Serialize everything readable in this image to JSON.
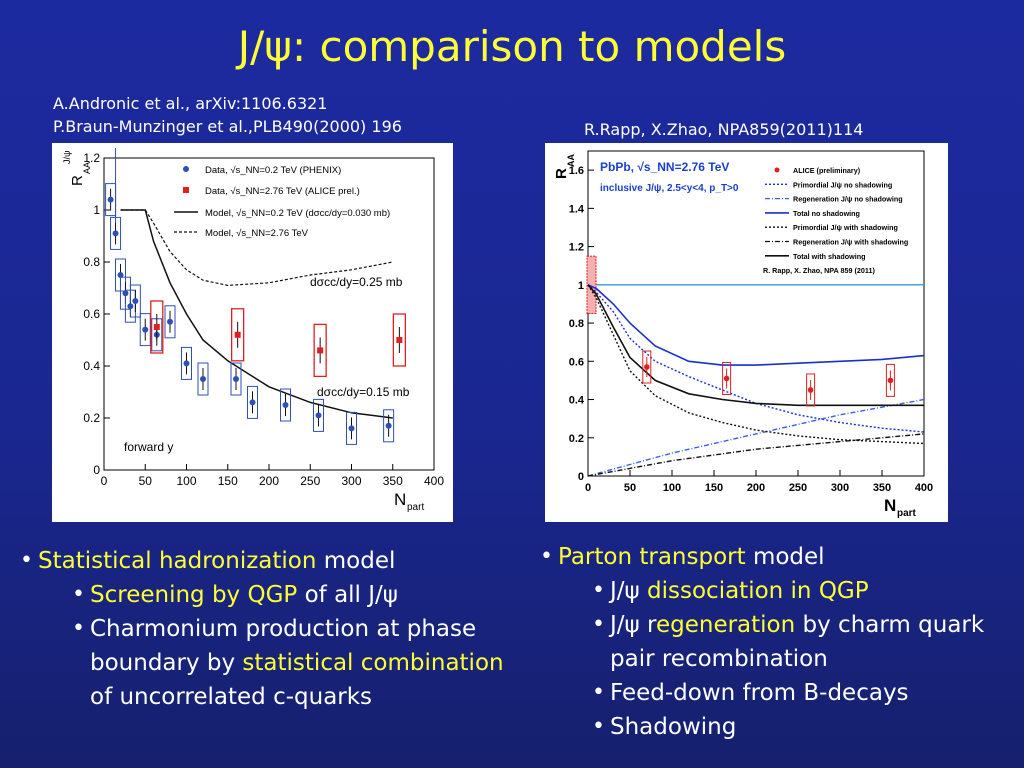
{
  "slide": {
    "title": "J/ψ: comparison to models"
  },
  "references": {
    "left_line1": "A.Andronic et al., arXiv:1106.6321",
    "left_line2": "P.Braun-Munzinger et al.,PLB490(2000) 196",
    "right": "R.Rapp, X.Zhao, NPA859(2011)114"
  },
  "left_bullets": {
    "b1_hl": "Statistical hadronization",
    "b1_rest": " model",
    "b2_hl": "Screening by QGP",
    "b2_rest": " of all J/ψ",
    "b3_pre": "Charmonium production at phase boundary by ",
    "b3_hl": "statistical combination",
    "b3_rest": " of uncorrelated c-quarks"
  },
  "right_bullets": {
    "b1_hl": "Parton transport",
    "b1_rest": " model",
    "b2_pre": "J/ψ ",
    "b2_hl": "dissociation in QGP",
    "b3_pre": "J/ψ r",
    "b3_hl": "egeneration",
    "b3_rest": " by charm quark pair recombination",
    "b4": "Feed-down from B-decays",
    "b5": "Shadowing"
  },
  "colors": {
    "title": "#ffff33",
    "highlight": "#ffff33",
    "background": "#1c2aa0",
    "phenix": "#2f4fb5",
    "alice": "#e02020"
  },
  "chart_data": [
    {
      "type": "scatter",
      "title": "",
      "xlabel": "N",
      "xlabel_sub": "part",
      "ylabel": "R",
      "ylabel_sub": "AA",
      "ylabel_sup": "J/ψ",
      "xlim": [
        0,
        400
      ],
      "ylim": [
        0,
        1.2
      ],
      "xticks": [
        "0",
        "50",
        "100",
        "150",
        "200",
        "250",
        "300",
        "350",
        "400"
      ],
      "yticks": [
        "0",
        "0.2",
        "0.4",
        "0.6",
        "0.8",
        "1",
        "1.2"
      ],
      "legend": [
        {
          "text": "Data, √s_NN=0.2 TeV (PHENIX)",
          "style": "blue-dot"
        },
        {
          "text": "Data, √s_NN=2.76 TeV (ALICE prel.)",
          "style": "red-square"
        },
        {
          "text": "Model, √s_NN=0.2 TeV (dσcc/dy=0.030 mb)",
          "style": "solid"
        },
        {
          "text": "Model, √s_NN=2.76 TeV",
          "style": "dashed"
        }
      ],
      "annotations": [
        "dσcc/dy=0.25 mb",
        "dσcc/dy=0.15 mb",
        "forward y"
      ],
      "series": [
        {
          "name": "Data, √s_NN=0.2 TeV (PHENIX)",
          "x": [
            8,
            14,
            20,
            26,
            32,
            38,
            50,
            64,
            80,
            100,
            120,
            160,
            180,
            220,
            260,
            300,
            345
          ],
          "y": [
            1.04,
            0.91,
            0.75,
            0.68,
            0.63,
            0.65,
            0.54,
            0.52,
            0.57,
            0.41,
            0.35,
            0.35,
            0.26,
            0.25,
            0.21,
            0.16,
            0.17
          ]
        },
        {
          "name": "Data, √s_NN=2.76 TeV (ALICE prel.)",
          "x": [
            64,
            162,
            262,
            358
          ],
          "y": [
            0.55,
            0.52,
            0.46,
            0.5
          ]
        },
        {
          "name": "Model, √s_NN=0.2 TeV (dσcc/dy=0.030 mb)",
          "x": [
            20,
            50,
            60,
            80,
            100,
            120,
            150,
            200,
            250,
            300,
            350
          ],
          "y": [
            1.0,
            1.0,
            0.88,
            0.72,
            0.6,
            0.5,
            0.42,
            0.32,
            0.26,
            0.22,
            0.2
          ]
        },
        {
          "name": "Model, √s_NN=2.76 TeV",
          "x": [
            20,
            50,
            60,
            80,
            100,
            120,
            150,
            200,
            250,
            300,
            350
          ],
          "y": [
            1.0,
            1.0,
            0.95,
            0.84,
            0.77,
            0.73,
            0.71,
            0.72,
            0.75,
            0.77,
            0.8
          ]
        }
      ]
    },
    {
      "type": "line",
      "title": "",
      "xlabel": "N",
      "xlabel_sub": "part",
      "ylabel": "R",
      "ylabel_sub": "AA",
      "xlim": [
        0,
        400
      ],
      "ylim": [
        0,
        1.7
      ],
      "xticks": [
        "0",
        "50",
        "100",
        "150",
        "200",
        "250",
        "300",
        "350",
        "400"
      ],
      "yticks": [
        "0",
        "0.2",
        "0.4",
        "0.6",
        "0.8",
        "1",
        "1.2",
        "1.4",
        "1.6"
      ],
      "info": [
        "PbPb, √s_NN=2.76 TeV",
        "inclusive J/ψ, 2.5<y<4, p_T>0"
      ],
      "legend": [
        {
          "text": "ALICE (preliminary)",
          "style": "red-dot"
        },
        {
          "text": "Primordial J/ψ no shadowing",
          "style": "blue-dotted"
        },
        {
          "text": "Regeneration J/ψ no shadowing",
          "style": "blue-dashdot"
        },
        {
          "text": "Total no shadowing",
          "style": "blue-solid"
        },
        {
          "text": "Primordial J/ψ with shadowing",
          "style": "black-dotted"
        },
        {
          "text": "Regeneration J/ψ with shadowing",
          "style": "black-dashdot"
        },
        {
          "text": "Total with shadowing",
          "style": "black-solid"
        },
        {
          "text": "R. Rapp, X. Zhao, NPA 859 (2011)",
          "style": "none"
        }
      ],
      "series": [
        {
          "name": "ALICE (preliminary)",
          "x": [
            70,
            165,
            265,
            360
          ],
          "y": [
            0.57,
            0.51,
            0.45,
            0.5
          ]
        },
        {
          "name": "Primordial J/ψ no shadowing",
          "x": [
            0,
            10,
            30,
            50,
            80,
            120,
            160,
            200,
            250,
            300,
            350,
            400
          ],
          "y": [
            1.0,
            0.96,
            0.86,
            0.72,
            0.6,
            0.52,
            0.45,
            0.38,
            0.32,
            0.28,
            0.25,
            0.23
          ]
        },
        {
          "name": "Regeneration J/ψ no shadowing",
          "x": [
            0,
            50,
            100,
            150,
            200,
            250,
            300,
            350,
            400
          ],
          "y": [
            0.0,
            0.06,
            0.12,
            0.17,
            0.22,
            0.27,
            0.32,
            0.36,
            0.4
          ]
        },
        {
          "name": "Total no shadowing",
          "x": [
            0,
            10,
            30,
            50,
            80,
            120,
            160,
            200,
            250,
            300,
            350,
            400
          ],
          "y": [
            1.0,
            0.98,
            0.9,
            0.8,
            0.68,
            0.6,
            0.58,
            0.58,
            0.59,
            0.6,
            0.61,
            0.63
          ]
        },
        {
          "name": "Primordial J/ψ with shadowing",
          "x": [
            0,
            10,
            30,
            50,
            80,
            120,
            160,
            200,
            250,
            300,
            350,
            400
          ],
          "y": [
            1.0,
            0.93,
            0.74,
            0.55,
            0.42,
            0.33,
            0.28,
            0.24,
            0.21,
            0.19,
            0.18,
            0.17
          ]
        },
        {
          "name": "Regeneration J/ψ with shadowing",
          "x": [
            0,
            50,
            100,
            150,
            200,
            250,
            300,
            350,
            400
          ],
          "y": [
            0.0,
            0.04,
            0.08,
            0.11,
            0.14,
            0.16,
            0.18,
            0.2,
            0.22
          ]
        },
        {
          "name": "Total with shadowing",
          "x": [
            0,
            10,
            30,
            50,
            80,
            120,
            160,
            200,
            250,
            300,
            350,
            400
          ],
          "y": [
            1.0,
            0.95,
            0.78,
            0.62,
            0.5,
            0.43,
            0.4,
            0.38,
            0.37,
            0.37,
            0.37,
            0.37
          ]
        }
      ]
    }
  ]
}
